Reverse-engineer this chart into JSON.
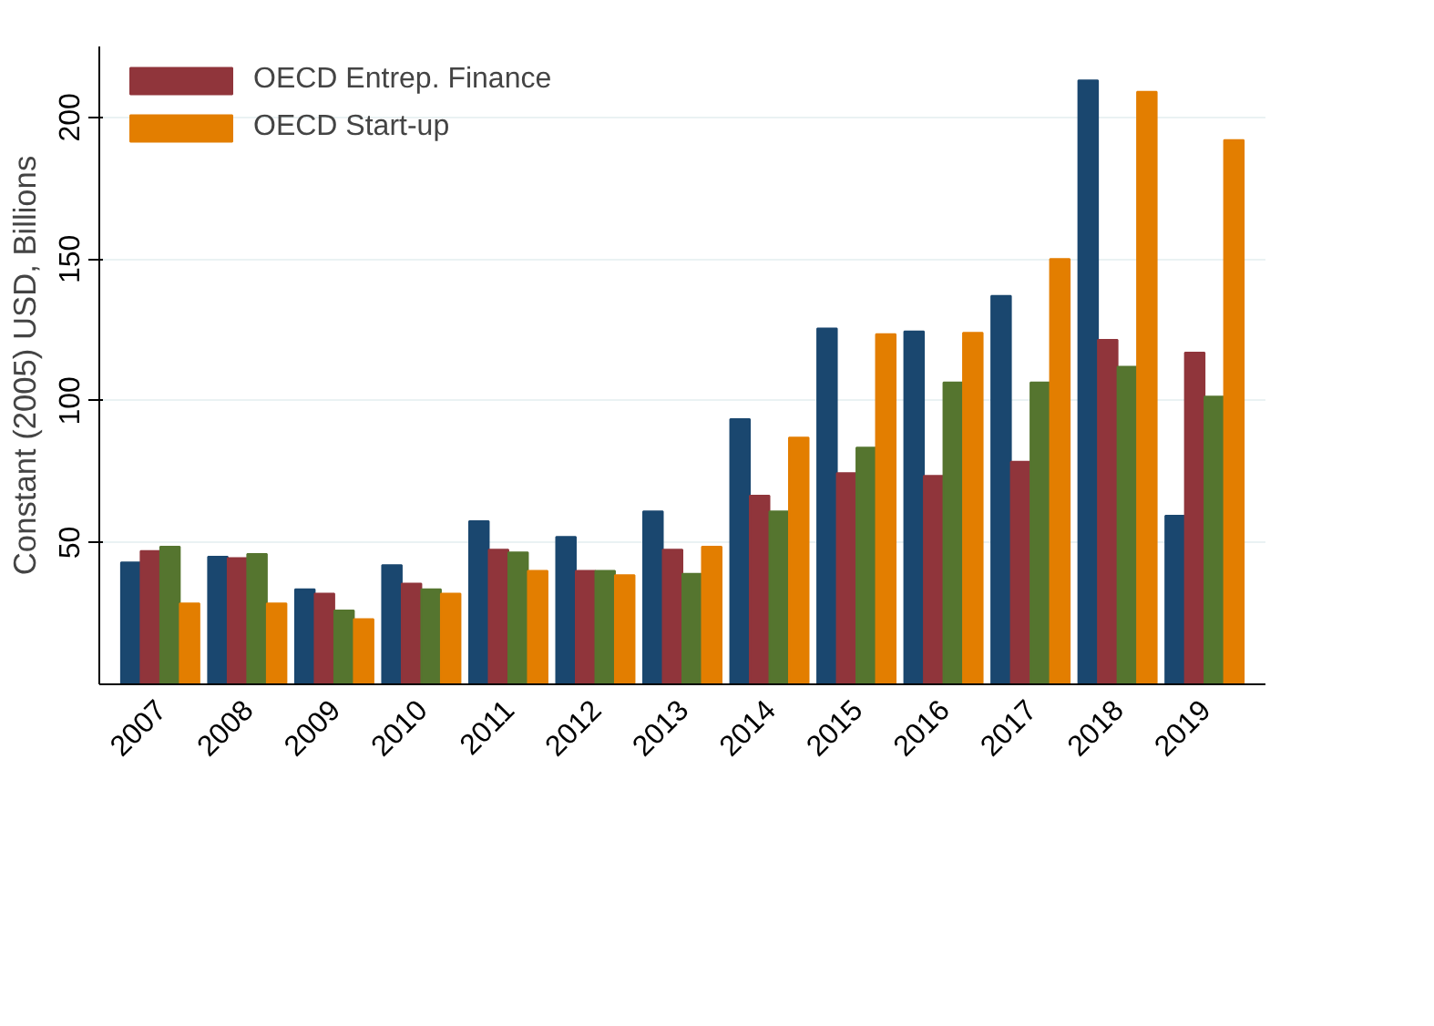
{
  "chart_data": {
    "type": "bar",
    "ylabel": "Constant (2005) USD, Billions",
    "categories": [
      "2007",
      "2008",
      "2009",
      "2010",
      "2011",
      "2012",
      "2013",
      "2014",
      "2015",
      "2016",
      "2017",
      "2018",
      "2019"
    ],
    "series": [
      {
        "color": "#1a476f",
        "values": [
          43,
          45,
          33.5,
          42,
          57.5,
          52,
          61,
          93.5,
          125.5,
          124.5,
          137,
          213,
          59.5
        ]
      },
      {
        "name": "OECD Entrep. Finance",
        "color": "#90353b",
        "values": [
          47,
          44.5,
          32,
          35.5,
          47.5,
          40,
          47.5,
          66.5,
          74.5,
          73.5,
          78.5,
          121.5,
          117
        ]
      },
      {
        "color": "#55752f",
        "values": [
          48.5,
          46,
          26,
          33.5,
          46.5,
          40,
          39,
          61,
          83.5,
          106.5,
          106.5,
          112,
          101.5
        ]
      },
      {
        "name": "OECD Start-up",
        "color": "#e37e00",
        "values": [
          28.5,
          28.5,
          23,
          32,
          40,
          38.5,
          48.5,
          87,
          123.5,
          124,
          150,
          209,
          192
        ]
      }
    ],
    "ylim": [
      0,
      225
    ],
    "yticks": [
      50,
      100,
      150,
      200
    ],
    "grid": "y",
    "legend": "top left"
  }
}
